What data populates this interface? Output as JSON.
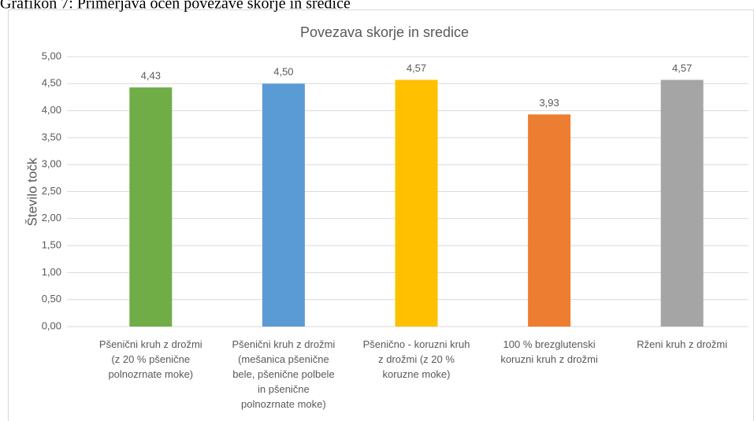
{
  "caption": "Grafikon 7: Primerjava ocen povezave skorje in sredice",
  "chart_data": {
    "type": "bar",
    "title": "Povezava skorje in sredice",
    "y_label": "Število točk",
    "categories": [
      "Pšenični kruh z drožmi\n(z 20 % pšenične\npolnozrnate moke)",
      "Pšenični kruh z drožmi\n(mešanica pšenične\nbele, pšenične polbele\nin pšenične\npolnozrnate moke)",
      "Pšenično - koruzni kruh\nz drožmi (z 20 %\nkoruzne moke)",
      "100 % brezglutenski\nkoruzni kruh z drožmi",
      "Rženi kruh z drožmi"
    ],
    "values": [
      4.43,
      4.5,
      4.57,
      3.93,
      4.57
    ],
    "value_labels": [
      "4,43",
      "4,50",
      "4,57",
      "3,93",
      "4,57"
    ],
    "colors": [
      "#70ad47",
      "#5b9bd5",
      "#ffc000",
      "#ed7d31",
      "#a5a5a5"
    ],
    "ylim": [
      0,
      5
    ],
    "yticks": [
      {
        "value": 0,
        "label": "0,00"
      },
      {
        "value": 0.5,
        "label": "0,50"
      },
      {
        "value": 1,
        "label": "1,00"
      },
      {
        "value": 1.5,
        "label": "1,50"
      },
      {
        "value": 2,
        "label": "2,00"
      },
      {
        "value": 2.5,
        "label": "2,50"
      },
      {
        "value": 3,
        "label": "3,00"
      },
      {
        "value": 3.5,
        "label": "3,50"
      },
      {
        "value": 4,
        "label": "4,00"
      },
      {
        "value": 4.5,
        "label": "4,50"
      },
      {
        "value": 5,
        "label": "5,00"
      }
    ],
    "grid": true
  }
}
